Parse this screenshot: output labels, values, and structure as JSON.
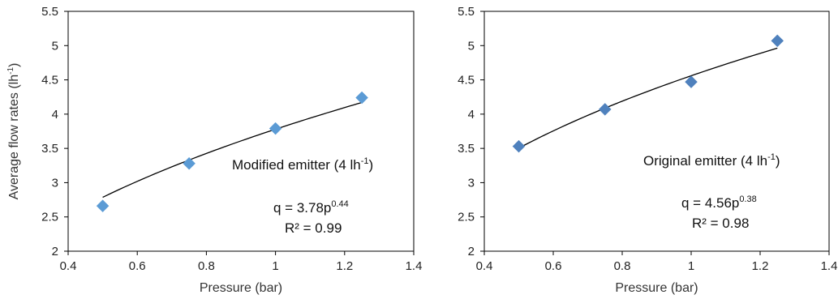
{
  "chart_data": [
    {
      "type": "scatter",
      "xlabel": "Pressure (bar)",
      "ylabel": "Average flow rates (lh",
      "ylabel_sup": "-1",
      "ylabel_end": ")",
      "xlim": [
        0.4,
        1.4
      ],
      "ylim": [
        2,
        5.5
      ],
      "xticks": [
        "0.4",
        "0.6",
        "0.8",
        "1",
        "1.2",
        "1.4"
      ],
      "yticks": [
        "2",
        "2.5",
        "3",
        "3.5",
        "4",
        "4.5",
        "5",
        "5.5"
      ],
      "series": [
        {
          "x": [
            0.5,
            0.75,
            1.0,
            1.25
          ],
          "y": [
            2.66,
            3.28,
            3.79,
            4.24
          ],
          "color": "#5b9bd5"
        }
      ],
      "fit": {
        "coef": 3.78,
        "exp": 0.44,
        "x_range": [
          0.5,
          1.25
        ]
      },
      "annotations": {
        "label": "Modified emitter (4 lh",
        "label_sup": "-1",
        "label_end": ")",
        "eq_prefix": "q = 3.78p",
        "eq_sup": "0.44",
        "r2": "R² = 0.99"
      },
      "grid": false
    },
    {
      "type": "scatter",
      "xlabel": "Pressure (bar)",
      "ylabel": "",
      "xlim": [
        0.4,
        1.4
      ],
      "ylim": [
        2,
        5.5
      ],
      "xticks": [
        "0.4",
        "0.6",
        "0.8",
        "1",
        "1.2",
        "1.4"
      ],
      "yticks": [
        "2",
        "2.5",
        "3",
        "3.5",
        "4",
        "4.5",
        "5",
        "5.5"
      ],
      "series": [
        {
          "x": [
            0.5,
            0.75,
            1.0,
            1.25
          ],
          "y": [
            3.53,
            4.07,
            4.47,
            5.07
          ],
          "color": "#4f81bd"
        }
      ],
      "fit": {
        "coef": 4.56,
        "exp": 0.38,
        "x_range": [
          0.5,
          1.25
        ]
      },
      "annotations": {
        "label": "Original emitter (4 lh",
        "label_sup": "-1",
        "label_end": ")",
        "eq_prefix": "q = 4.56p",
        "eq_sup": "0.38",
        "r2": "R² = 0.98"
      },
      "grid": false
    }
  ]
}
